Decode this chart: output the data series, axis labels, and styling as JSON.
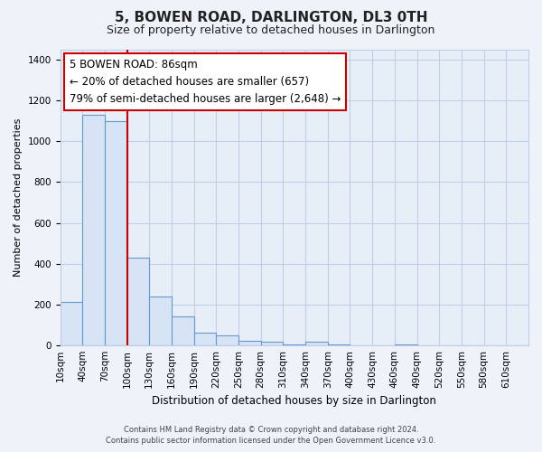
{
  "title": "5, BOWEN ROAD, DARLINGTON, DL3 0TH",
  "subtitle": "Size of property relative to detached houses in Darlington",
  "xlabel": "Distribution of detached houses by size in Darlington",
  "ylabel": "Number of detached properties",
  "bar_labels": [
    "10sqm",
    "40sqm",
    "70sqm",
    "100sqm",
    "130sqm",
    "160sqm",
    "190sqm",
    "220sqm",
    "250sqm",
    "280sqm",
    "310sqm",
    "340sqm",
    "370sqm",
    "400sqm",
    "430sqm",
    "460sqm",
    "490sqm",
    "520sqm",
    "550sqm",
    "580sqm",
    "610sqm"
  ],
  "bar_values": [
    210,
    1130,
    1100,
    430,
    240,
    140,
    60,
    50,
    20,
    15,
    5,
    15,
    5,
    0,
    0,
    5,
    0,
    0,
    0,
    0,
    0
  ],
  "bar_fill_color": "#d6e4f5",
  "bar_edge_color": "#6699cc",
  "vline_color": "#cc0000",
  "ylim": [
    0,
    1450
  ],
  "yticks": [
    0,
    200,
    400,
    600,
    800,
    1000,
    1200,
    1400
  ],
  "annotation_line1": "5 BOWEN ROAD: 86sqm",
  "annotation_line2": "← 20% of detached houses are smaller (657)",
  "annotation_line3": "79% of semi-detached houses are larger (2,648) →",
  "footer_line1": "Contains HM Land Registry data © Crown copyright and database right 2024.",
  "footer_line2": "Contains public sector information licensed under the Open Government Licence v3.0.",
  "bg_color": "#eef2f9",
  "plot_bg_color": "#e8eef8",
  "grid_color": "#c0cfe8",
  "annotation_box_edge": "#cc0000",
  "annotation_fontsize": 8.5,
  "title_fontsize": 11,
  "subtitle_fontsize": 9,
  "xlabel_fontsize": 8.5,
  "ylabel_fontsize": 8,
  "tick_fontsize": 7.5,
  "vline_x_index": 2
}
